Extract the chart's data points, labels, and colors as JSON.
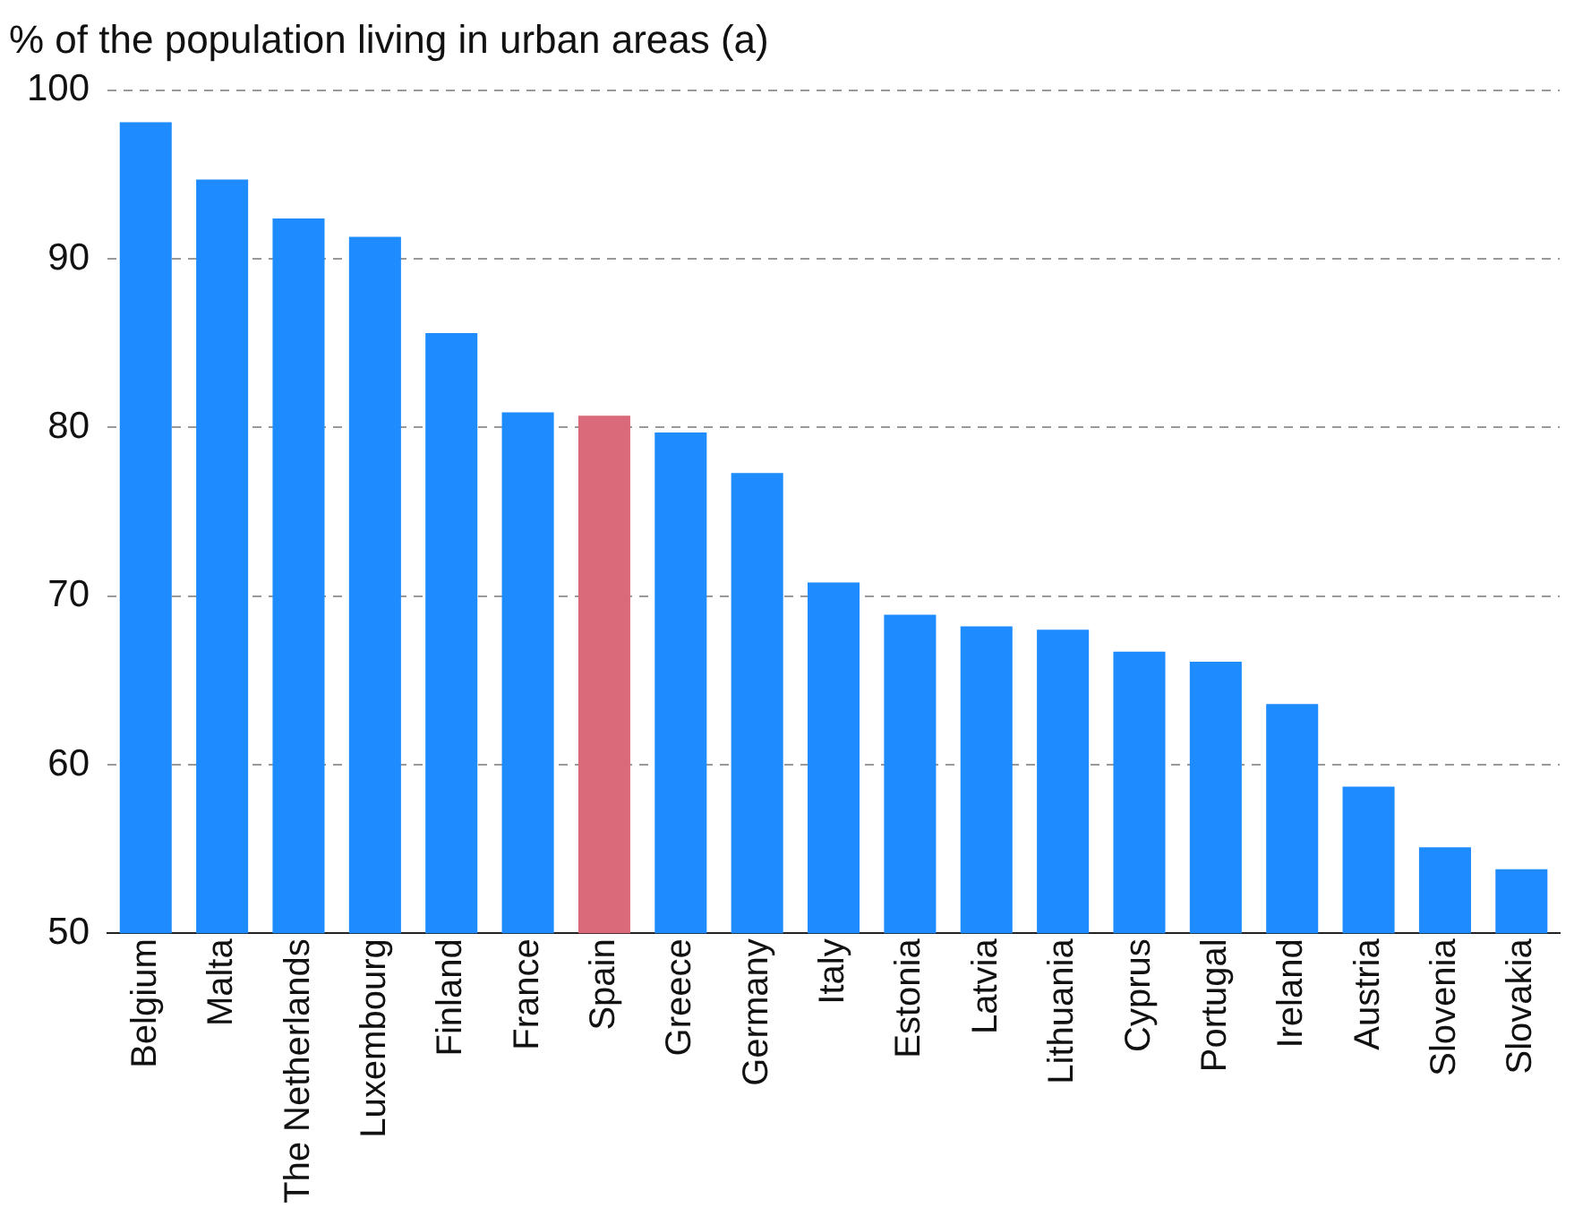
{
  "chart_data": {
    "type": "bar",
    "title": "% of the population living in urban areas (a)",
    "categories": [
      "Belgium",
      "Malta",
      "The Netherlands",
      "Luxembourg",
      "Finland",
      "France",
      "Spain",
      "Greece",
      "Germany",
      "Italy",
      "Estonia",
      "Latvia",
      "Lithuania",
      "Cyprus",
      "Portugal",
      "Ireland",
      "Austria",
      "Slovenia",
      "Slovakia"
    ],
    "values": [
      98.1,
      94.7,
      92.4,
      91.3,
      85.6,
      80.9,
      80.7,
      79.7,
      77.3,
      70.8,
      68.9,
      68.2,
      68.0,
      66.7,
      66.1,
      63.6,
      58.7,
      55.1,
      53.8
    ],
    "colors": [
      "#1e8cff",
      "#1e8cff",
      "#1e8cff",
      "#1e8cff",
      "#1e8cff",
      "#1e8cff",
      "#da6a7a",
      "#1e8cff",
      "#1e8cff",
      "#1e8cff",
      "#1e8cff",
      "#1e8cff",
      "#1e8cff",
      "#1e8cff",
      "#1e8cff",
      "#1e8cff",
      "#1e8cff",
      "#1e8cff",
      "#1e8cff"
    ],
    "ylim": [
      50,
      100
    ],
    "yticks": [
      50,
      60,
      70,
      80,
      90,
      100
    ],
    "grid": "y",
    "legend": false
  }
}
